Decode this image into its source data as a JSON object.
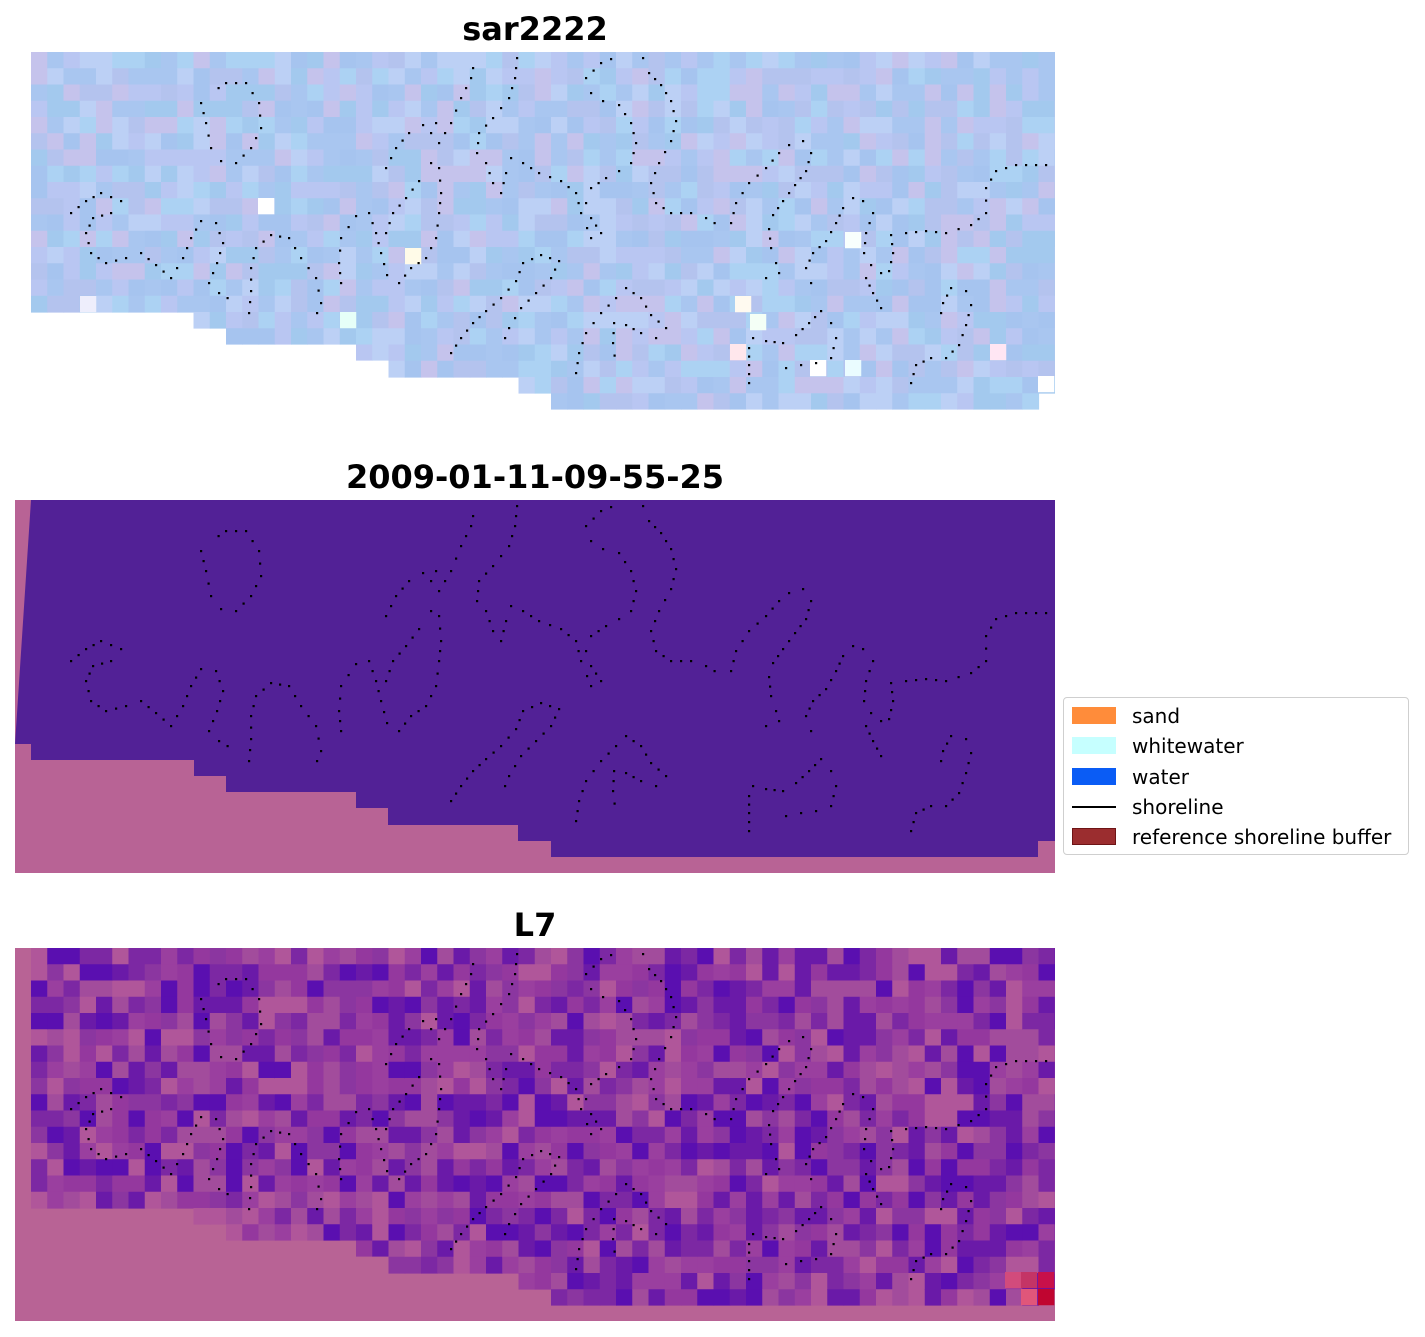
{
  "chart_data": [
    {
      "type": "heatmap",
      "title": "sar2222",
      "image": "composite-rgb",
      "grid": false,
      "axes": "off",
      "palette": [
        "#a9c6f0",
        "#b4c3ee",
        "#a3c9ee",
        "#b9c6f2",
        "#a6c4ef",
        "#bcd0f5",
        "#acd2f3",
        "#c5c3ec"
      ],
      "overlays": [
        "shoreline-points"
      ]
    },
    {
      "type": "heatmap",
      "title": "2009-01-11-09-55-25",
      "image": "classified",
      "grid": false,
      "axes": "off",
      "class_colors": {
        "water": "#522196",
        "outside": "#b86395"
      },
      "overlays": [
        "shoreline-points"
      ]
    },
    {
      "type": "heatmap",
      "title": "L7",
      "image": "composite-rgb",
      "grid": false,
      "axes": "off",
      "palette": [
        "#8b36a0",
        "#9a3f9f",
        "#7c28a3",
        "#a24c9c",
        "#6a1aa8",
        "#94389e",
        "#b0569a",
        "#5a0fb0"
      ],
      "outside_color": "#b86395",
      "overlays": [
        "shoreline-points"
      ]
    }
  ],
  "legend": {
    "placement": "center-right",
    "entries": [
      {
        "label": "sand",
        "kind": "patch",
        "color": "#ff8c3a"
      },
      {
        "label": "whitewater",
        "kind": "patch",
        "color": "#c6ffff"
      },
      {
        "label": "water",
        "kind": "patch",
        "color": "#0a5cf5"
      },
      {
        "label": "shoreline",
        "kind": "line",
        "color": "#000000"
      },
      {
        "label": "reference shoreline buffer",
        "kind": "patch",
        "color": "#9b2d2f",
        "edge": "#6e1416"
      }
    ]
  }
}
